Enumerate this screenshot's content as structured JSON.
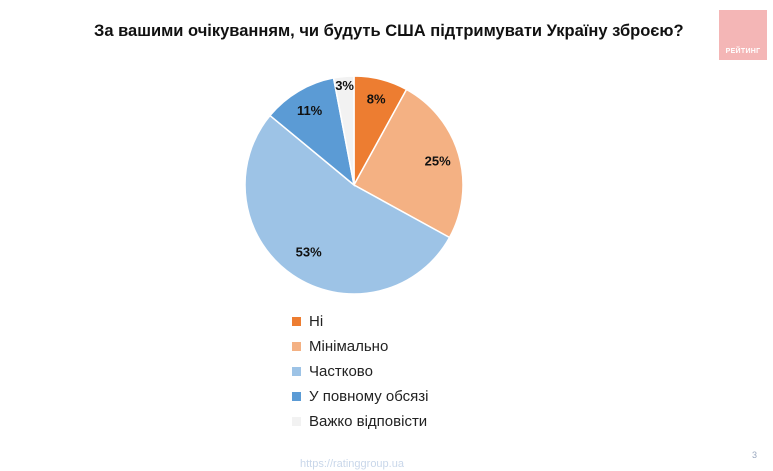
{
  "chart_data": {
    "type": "pie",
    "title": "За вашими очікуванням, чи будуть США підтримувати Україну зброєю?",
    "slices": [
      {
        "label": "Ні",
        "value": 8,
        "display": "8%",
        "color": "#ed7d31"
      },
      {
        "label": "Мінімально",
        "value": 25,
        "display": "25%",
        "color": "#f4b183"
      },
      {
        "label": "Частково",
        "value": 53,
        "display": "53%",
        "color": "#9dc3e6"
      },
      {
        "label": "У повному обсязі",
        "value": 11,
        "display": "11%",
        "color": "#5b9bd5"
      },
      {
        "label": "Важко відповісти",
        "value": 3,
        "display": "3%",
        "color": "#f2f2f2"
      }
    ],
    "legend_position": "bottom"
  },
  "logo_text": "РЕЙТИНГ",
  "footer": "https://ratinggroup.ua",
  "page_number": "3"
}
